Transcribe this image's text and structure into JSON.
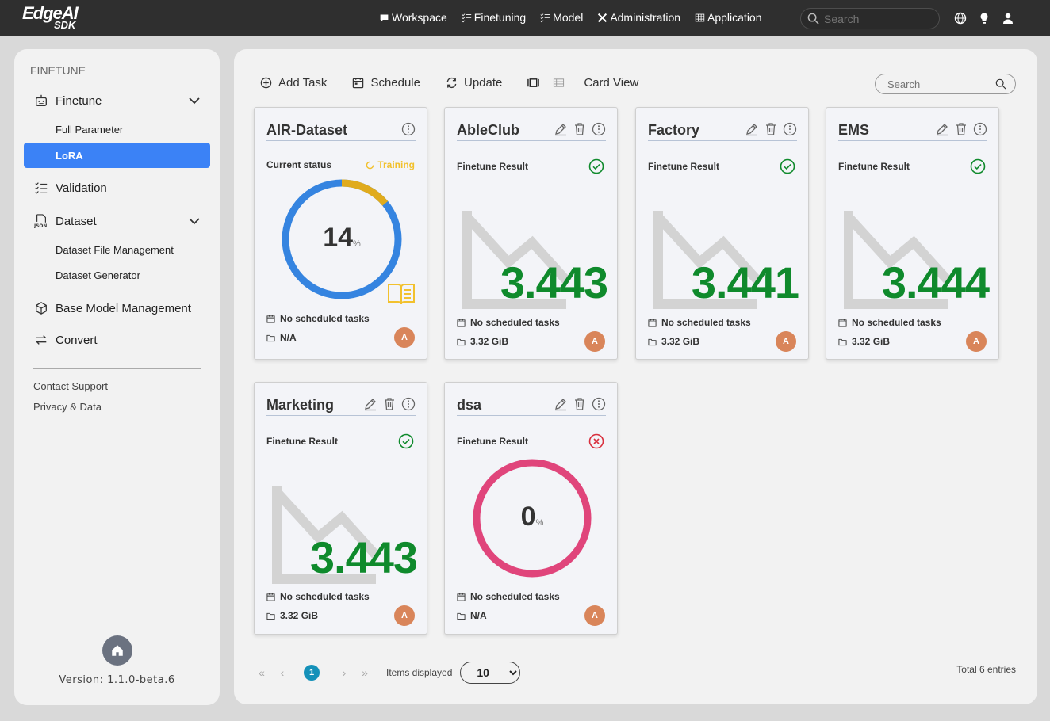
{
  "app": {
    "logo_line1": "EdgeAI",
    "logo_line2": "SDK"
  },
  "topnav": {
    "items": [
      "Workspace",
      "Finetuning",
      "Model",
      "Administration",
      "Application"
    ],
    "search_placeholder": "Search"
  },
  "sidebar": {
    "section": "FINETUNE",
    "finetune": "Finetune",
    "full_parameter": "Full Parameter",
    "lora": "LoRA",
    "validation": "Validation",
    "dataset": "Dataset",
    "dataset_file_management": "Dataset File Management",
    "dataset_generator": "Dataset Generator",
    "base_model_management": "Base Model Management",
    "convert": "Convert",
    "contact_support": "Contact Support",
    "privacy_data": "Privacy & Data",
    "version": "Version: 1.1.0-beta.6"
  },
  "toolbar": {
    "add_task": "Add Task",
    "schedule": "Schedule",
    "update": "Update",
    "card_view": "Card View",
    "search_placeholder": "Search"
  },
  "cards": [
    {
      "title": "AIR-Dataset",
      "status_label": "Current status",
      "status": "Training",
      "progress": 14,
      "progress_unit": "%",
      "schedule": "No scheduled tasks",
      "size": "N/A",
      "avatar": "A"
    },
    {
      "title": "AbleClub",
      "status_label": "Finetune Result",
      "result": "3.443",
      "schedule": "No scheduled tasks",
      "size": "3.32 GiB",
      "avatar": "A"
    },
    {
      "title": "Factory",
      "status_label": "Finetune Result",
      "result": "3.441",
      "schedule": "No scheduled tasks",
      "size": "3.32 GiB",
      "avatar": "A"
    },
    {
      "title": "EMS",
      "status_label": "Finetune Result",
      "result": "3.444",
      "schedule": "No scheduled tasks",
      "size": "3.32 GiB",
      "avatar": "A"
    },
    {
      "title": "Marketing",
      "status_label": "Finetune Result",
      "result": "3.443",
      "schedule": "No scheduled tasks",
      "size": "3.32 GiB",
      "avatar": "A"
    },
    {
      "title": "dsa",
      "status_label": "Finetune Result",
      "progress": 0,
      "progress_unit": "%",
      "schedule": "No scheduled tasks",
      "size": "N/A",
      "avatar": "A"
    }
  ],
  "pagination": {
    "current_page": "1",
    "items_displayed_label": "Items displayed",
    "page_size": "10",
    "total": "Total 6 entries"
  },
  "colors": {
    "accent": "#3b82f6",
    "success": "#0f8a2c",
    "error": "#e0245e",
    "training": "#f2c12e",
    "donut_blue": "#3584e0"
  }
}
